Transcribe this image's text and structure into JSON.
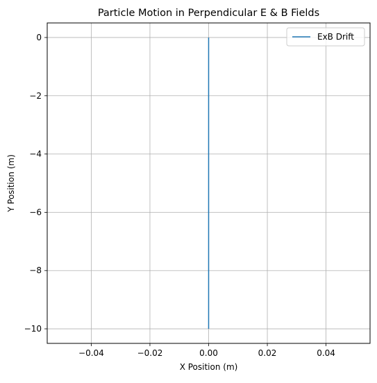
{
  "chart_data": {
    "type": "line",
    "title": "Particle Motion in Perpendicular E & B Fields",
    "xlabel": "X Position (m)",
    "ylabel": "Y Position (m)",
    "xlim": [
      -0.055,
      0.055
    ],
    "ylim": [
      -10.5,
      0.5
    ],
    "xticks": [
      -0.04,
      -0.02,
      0.0,
      0.02,
      0.04
    ],
    "xtick_labels": [
      "−0.04",
      "−0.02",
      "0.00",
      "0.02",
      "0.04"
    ],
    "yticks": [
      0,
      -2,
      -4,
      -6,
      -8,
      -10
    ],
    "ytick_labels": [
      "0",
      "−2",
      "−4",
      "−6",
      "−8",
      "−10"
    ],
    "grid": true,
    "legend_position": "top-right",
    "series": [
      {
        "name": "ExB Drift",
        "color": "#1f77b4",
        "x": [
          0.0,
          0.0
        ],
        "y": [
          0,
          -10
        ]
      }
    ]
  }
}
